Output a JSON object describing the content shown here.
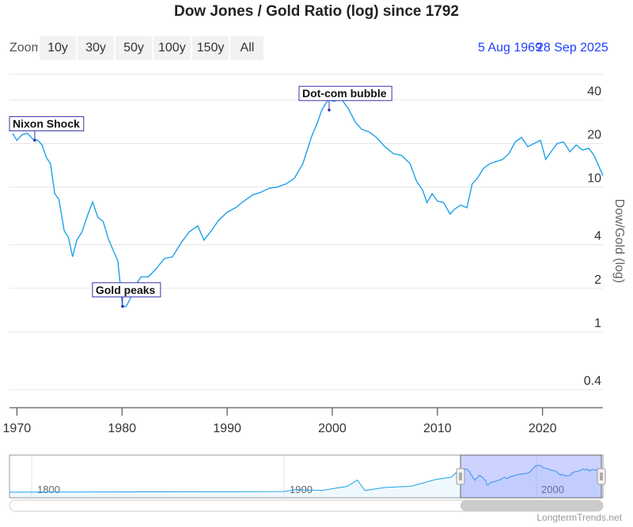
{
  "chart_data": {
    "type": "line",
    "title": "Dow Jones / Gold Ratio (log) since 1792",
    "ylabel": "Dow/Gold (log)",
    "yscale": "log",
    "ylim": [
      0.3,
      60
    ],
    "xlim": [
      1969.6,
      2025.74
    ],
    "y_ticks": [
      {
        "value": 0.4,
        "label": "0.4"
      },
      {
        "value": 1,
        "label": "1"
      },
      {
        "value": 2,
        "label": "2"
      },
      {
        "value": 4,
        "label": "4"
      },
      {
        "value": 10,
        "label": "10"
      },
      {
        "value": 20,
        "label": "20"
      },
      {
        "value": 40,
        "label": "40"
      }
    ],
    "x_ticks": [
      {
        "value": 1970,
        "label": "1970"
      },
      {
        "value": 1980,
        "label": "1980"
      },
      {
        "value": 1990,
        "label": "1990"
      },
      {
        "value": 2000,
        "label": "2000"
      },
      {
        "value": 2010,
        "label": "2010"
      },
      {
        "value": 2020,
        "label": "2020"
      }
    ],
    "grid": true,
    "line_color": "#1ea1e8",
    "series": [
      {
        "x": [
          1969.6,
          1970.0,
          1970.5,
          1971.0,
          1971.5,
          1972.0,
          1972.4,
          1972.8,
          1973.2,
          1973.6,
          1974.0,
          1974.5,
          1974.9,
          1975.3,
          1975.7,
          1976.2,
          1976.7,
          1977.2,
          1977.7,
          1978.2,
          1978.7,
          1979.2,
          1979.6,
          1980.05,
          1980.4,
          1980.8,
          1981.3,
          1981.8,
          1982.5,
          1983.2,
          1984.0,
          1984.8,
          1985.6,
          1986.4,
          1987.2,
          1987.8,
          1988.5,
          1989.2,
          1990.0,
          1990.8,
          1991.6,
          1992.4,
          1993.2,
          1994.0,
          1994.8,
          1995.6,
          1996.4,
          1997.2,
          1998.0,
          1998.6,
          1999.0,
          1999.6,
          2000.2,
          2000.8,
          2001.5,
          2002.2,
          2002.8,
          2003.5,
          2004.2,
          2005.0,
          2005.8,
          2006.6,
          2007.4,
          2008.0,
          2008.6,
          2009.0,
          2009.5,
          2010.0,
          2010.6,
          2011.2,
          2011.6,
          2012.2,
          2012.8,
          2013.3,
          2013.8,
          2014.4,
          2015.0,
          2015.6,
          2016.2,
          2016.8,
          2017.4,
          2018.0,
          2018.6,
          2019.2,
          2019.8,
          2020.3,
          2020.8,
          2021.4,
          2022.0,
          2022.6,
          2023.2,
          2023.8,
          2024.4,
          2024.9,
          2025.74
        ],
        "y": [
          23.5,
          21.0,
          23.0,
          23.5,
          21.5,
          21.0,
          19.5,
          16.0,
          14.5,
          9.0,
          8.2,
          5.0,
          4.5,
          3.3,
          4.3,
          4.9,
          6.3,
          7.9,
          6.2,
          5.8,
          4.4,
          3.6,
          3.1,
          1.5,
          1.5,
          1.7,
          2.1,
          2.4,
          2.4,
          2.7,
          3.2,
          3.3,
          4.1,
          4.9,
          5.4,
          4.3,
          5.0,
          5.9,
          6.7,
          7.2,
          8.0,
          8.8,
          9.2,
          9.8,
          10.0,
          10.5,
          11.5,
          14.5,
          22.0,
          28.0,
          34.0,
          40.0,
          39.0,
          41.0,
          35.0,
          28.0,
          25.0,
          24.0,
          22.0,
          19.0,
          17.0,
          16.5,
          14.5,
          11.0,
          9.5,
          7.8,
          9.0,
          8.0,
          7.8,
          6.5,
          7.0,
          7.5,
          7.2,
          10.5,
          11.5,
          13.5,
          14.5,
          15.0,
          15.5,
          17.0,
          20.5,
          22.0,
          19.0,
          20.0,
          21.0,
          15.5,
          17.5,
          20.0,
          20.5,
          17.5,
          19.5,
          18.0,
          18.5,
          16.5,
          12.0
        ]
      }
    ],
    "annotations": [
      {
        "x": 1971.7,
        "y": 21.0,
        "label": "Nixon Shock"
      },
      {
        "x": 1980.05,
        "y": 1.5,
        "label": "Gold peaks"
      },
      {
        "x": 1999.7,
        "y": 34.0,
        "label": "Dot-com bubble"
      }
    ],
    "navigator": {
      "tick_labels": [
        "1800",
        "1900",
        "2000"
      ]
    }
  },
  "zoom": {
    "label": "Zoom",
    "buttons": [
      "10y",
      "30y",
      "50y",
      "100y",
      "150y",
      "All"
    ]
  },
  "range": {
    "from": "5 Aug 1969",
    "to": "28 Sep 2025"
  },
  "credit": "LongtermTrends.net"
}
